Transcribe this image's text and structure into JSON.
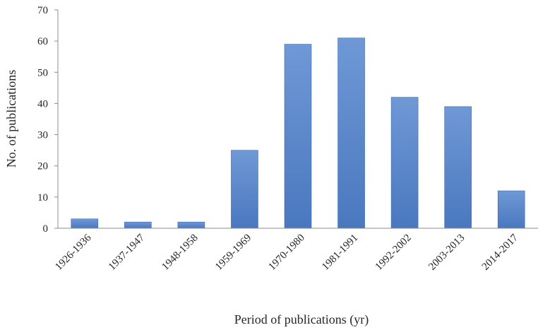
{
  "chart_data": {
    "type": "bar",
    "title": "",
    "xlabel": "Period of publications (yr)",
    "ylabel": "No. of publications",
    "ylim": [
      0,
      70
    ],
    "yticks": [
      0,
      10,
      20,
      30,
      40,
      50,
      60,
      70
    ],
    "grid": false,
    "legend": "none",
    "bar_color": "#4a78bf",
    "bar_color_light": "#6f98d6",
    "categories": [
      "1926-1936",
      "1937-1947",
      "1948-1958",
      "1959-1969",
      "1970-1980",
      "1981-1991",
      "1992-2002",
      "2003-2013",
      "2014-2017"
    ],
    "values": [
      3,
      2,
      2,
      25,
      59,
      61,
      42,
      39,
      12
    ]
  }
}
